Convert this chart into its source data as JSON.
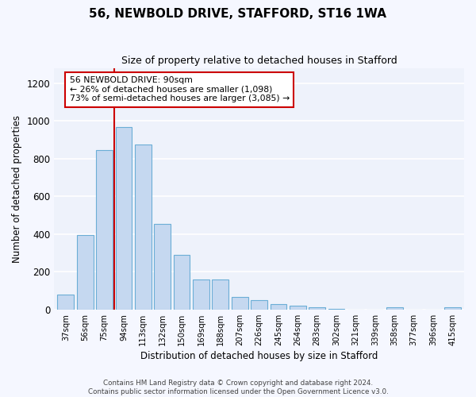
{
  "title": "56, NEWBOLD DRIVE, STAFFORD, ST16 1WA",
  "subtitle": "Size of property relative to detached houses in Stafford",
  "xlabel": "Distribution of detached houses by size in Stafford",
  "ylabel": "Number of detached properties",
  "categories": [
    "37sqm",
    "56sqm",
    "75sqm",
    "94sqm",
    "113sqm",
    "132sqm",
    "150sqm",
    "169sqm",
    "188sqm",
    "207sqm",
    "226sqm",
    "245sqm",
    "264sqm",
    "283sqm",
    "302sqm",
    "321sqm",
    "339sqm",
    "358sqm",
    "377sqm",
    "396sqm",
    "415sqm"
  ],
  "values": [
    80,
    395,
    845,
    965,
    875,
    455,
    290,
    160,
    160,
    65,
    48,
    30,
    22,
    12,
    2,
    0,
    0,
    10,
    0,
    0,
    12
  ],
  "bar_color": "#c5d8f0",
  "bar_edge_color": "#6baed6",
  "highlight_label": "56 NEWBOLD DRIVE: 90sqm",
  "annotation_line1": "← 26% of detached houses are smaller (1,098)",
  "annotation_line2": "73% of semi-detached houses are larger (3,085) →",
  "vline_color": "#cc0000",
  "box_edge_color": "#cc0000",
  "ylim": [
    0,
    1280
  ],
  "yticks": [
    0,
    200,
    400,
    600,
    800,
    1000,
    1200
  ],
  "background_color": "#eef2fb",
  "grid_color": "#ffffff",
  "fig_bg_color": "#f5f7ff",
  "footer_line1": "Contains HM Land Registry data © Crown copyright and database right 2024.",
  "footer_line2": "Contains public sector information licensed under the Open Government Licence v3.0.",
  "vline_bar_index": 3
}
